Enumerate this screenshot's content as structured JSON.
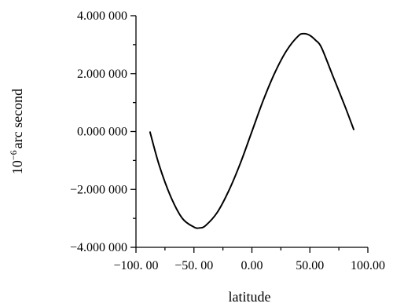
{
  "chart_data": {
    "type": "line",
    "xlabel": "latitude",
    "ylabel_base": "10",
    "ylabel_exp": "−6",
    "ylabel_rest": "arc second",
    "xlim": [
      -100,
      100
    ],
    "ylim": [
      -4,
      4
    ],
    "x_ticks": [
      {
        "value": -100,
        "label": "−100. 00"
      },
      {
        "value": -50,
        "label": "−50. 00"
      },
      {
        "value": 0,
        "label": "0.00"
      },
      {
        "value": 50,
        "label": "50.00"
      },
      {
        "value": 100,
        "label": "100.00"
      }
    ],
    "y_ticks": [
      {
        "value": 4,
        "label": "4.000 000"
      },
      {
        "value": 2,
        "label": "2.000 000"
      },
      {
        "value": 0,
        "label": "0.000 000"
      },
      {
        "value": -2,
        "label": "−2.000 000"
      },
      {
        "value": -4,
        "label": "−4.000 000"
      }
    ],
    "grid": false,
    "series": [
      {
        "x": [
          -88,
          -80,
          -70,
          -60,
          -50,
          -45,
          -40,
          -30,
          -20,
          -10,
          0,
          10,
          20,
          30,
          40,
          45,
          50,
          55,
          60,
          70,
          80,
          88
        ],
        "y": [
          0.0,
          -1.16,
          -2.25,
          -3.0,
          -3.3,
          -3.33,
          -3.25,
          -2.8,
          -2.05,
          -1.1,
          0.0,
          1.1,
          2.05,
          2.8,
          3.3,
          3.38,
          3.32,
          3.15,
          2.9,
          1.9,
          0.9,
          0.05
        ]
      }
    ]
  }
}
